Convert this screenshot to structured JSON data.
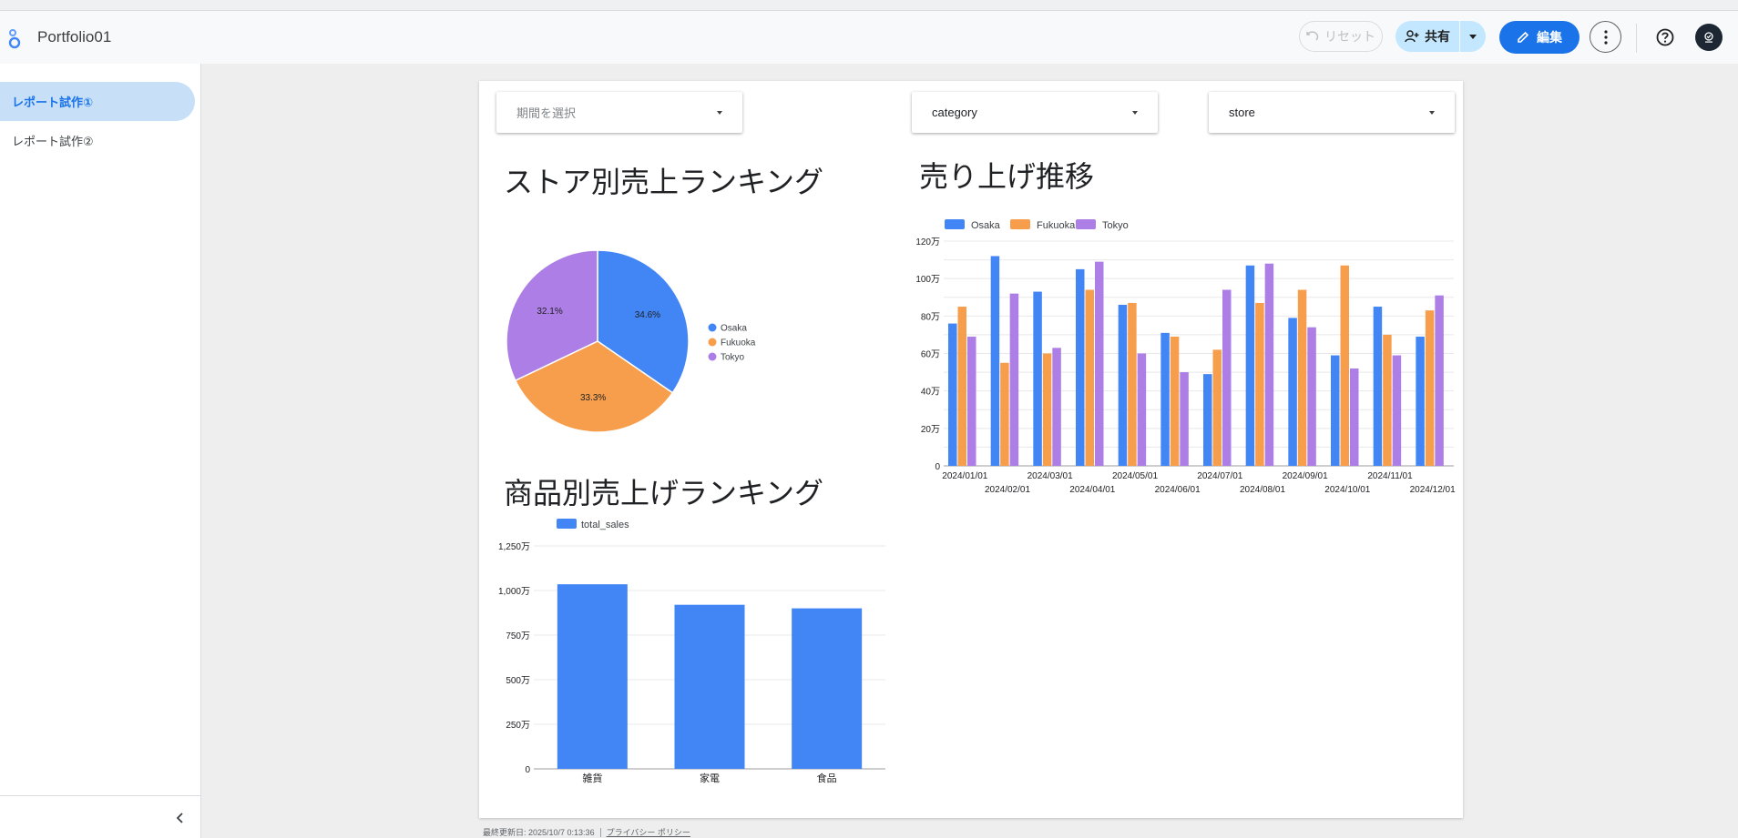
{
  "header": {
    "app_title": "Portfolio01",
    "reset_label": "リセット",
    "share_label": "共有",
    "edit_label": "編集"
  },
  "sidebar": {
    "pages": [
      {
        "label": "レポート試作①",
        "active": true
      },
      {
        "label": "レポート試作②",
        "active": false
      }
    ]
  },
  "filters": {
    "period_placeholder": "期間を選択",
    "category_label": "category",
    "store_label": "store"
  },
  "pie_chart": {
    "title": "ストア別売上ランキング"
  },
  "line_chart": {
    "title": "売り上げ推移"
  },
  "bar_chart": {
    "title": "商品別売上げランキング"
  },
  "footer": {
    "updated": "最終更新日: 2025/10/7 0:13:36",
    "privacy": "プライバシー ポリシー"
  },
  "colors": {
    "accent": "#1a73e8",
    "osaka": "#4285f4",
    "fukuoka": "#f79e4c",
    "tokyo": "#ac7ee6"
  },
  "chart_data": [
    {
      "type": "pie",
      "title": "ストア別売上ランキング",
      "categories": [
        "Osaka",
        "Fukuoka",
        "Tokyo"
      ],
      "values": [
        34.6,
        33.3,
        32.1
      ],
      "value_labels": [
        "34.6%",
        "33.3%",
        "32.1%"
      ],
      "colors": [
        "#4285f4",
        "#f79e4c",
        "#ac7ee6"
      ],
      "legend": "right"
    },
    {
      "type": "bar",
      "title": "売り上げ推移",
      "categories": [
        "2024/01/01",
        "2024/02/01",
        "2024/03/01",
        "2024/04/01",
        "2024/05/01",
        "2024/06/01",
        "2024/07/01",
        "2024/08/01",
        "2024/09/01",
        "2024/10/01",
        "2024/11/01",
        "2024/12/01"
      ],
      "series": [
        {
          "name": "Osaka",
          "color": "#4285f4",
          "values": [
            76,
            112,
            93,
            105,
            86,
            71,
            49,
            107,
            79,
            59,
            85,
            69
          ]
        },
        {
          "name": "Fukuoka",
          "color": "#f79e4c",
          "values": [
            85,
            55,
            60,
            94,
            87,
            69,
            62,
            87,
            94,
            107,
            70,
            83
          ]
        },
        {
          "name": "Tokyo",
          "color": "#ac7ee6",
          "values": [
            69,
            92,
            63,
            109,
            60,
            50,
            94,
            108,
            74,
            52,
            59,
            91
          ]
        }
      ],
      "yticks": [
        "0",
        "20万",
        "40万",
        "60万",
        "80万",
        "100万",
        "120万"
      ],
      "ylim": [
        0,
        120
      ],
      "unit": "万",
      "grid": true,
      "legend": "top-left"
    },
    {
      "type": "bar",
      "title": "商品別売上げランキング",
      "categories": [
        "雑貨",
        "家電",
        "食品"
      ],
      "series": [
        {
          "name": "total_sales",
          "color": "#4285f4",
          "values": [
            1035,
            920,
            900
          ]
        }
      ],
      "yticks": [
        "0",
        "250万",
        "500万",
        "750万",
        "1,000万",
        "1,250万"
      ],
      "ylim": [
        0,
        1250
      ],
      "unit": "万",
      "grid": true,
      "legend": "top-left"
    }
  ]
}
